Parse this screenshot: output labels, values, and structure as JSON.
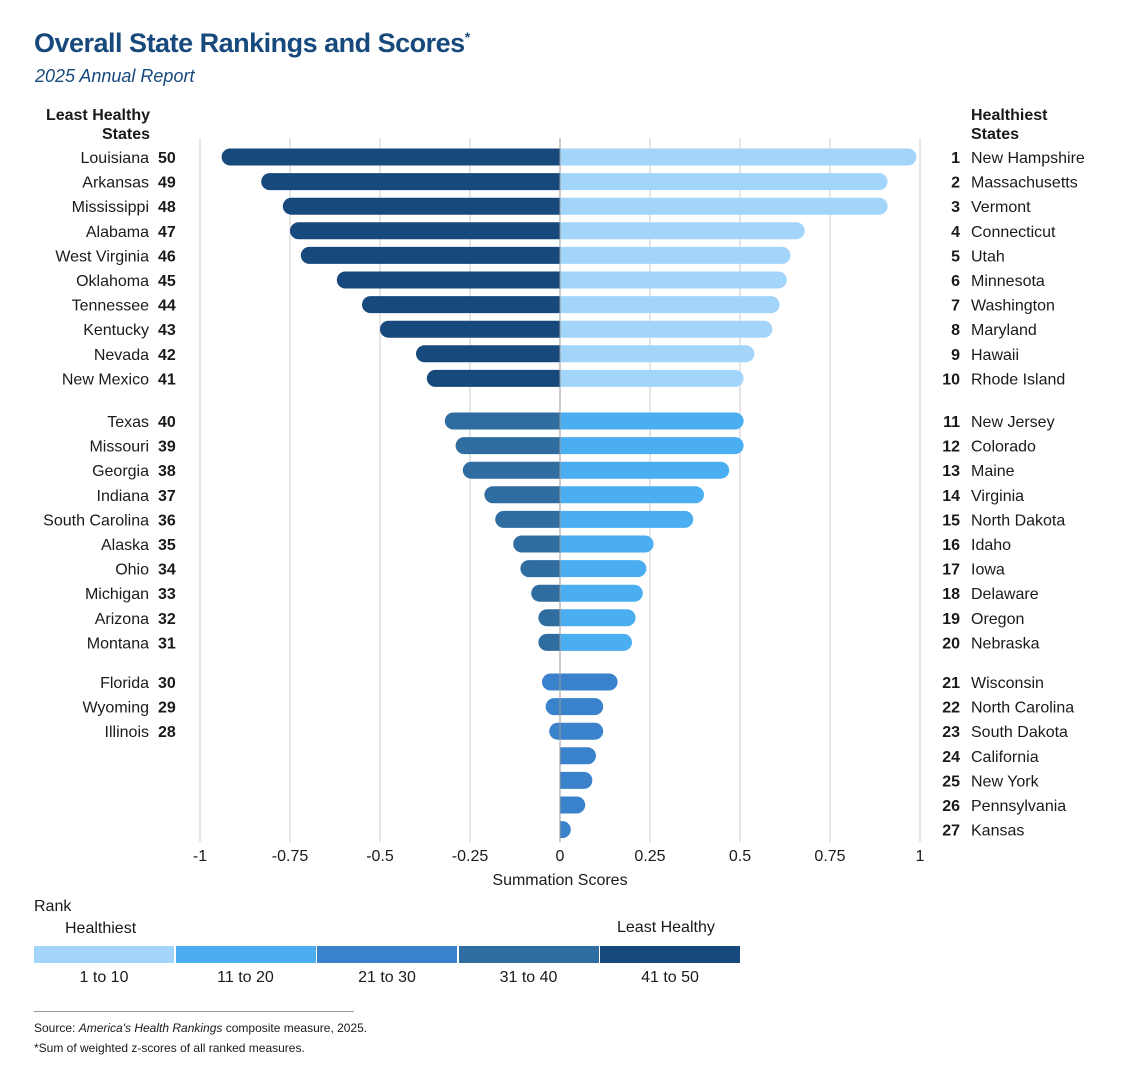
{
  "title": "Overall State Rankings and Scores",
  "title_mark": "*",
  "subtitle": "2025 Annual Report",
  "left_header": "Least Healthy States",
  "right_header": "Healthiest States",
  "legend": {
    "title": "Rank",
    "left_label": "Healthiest",
    "right_label": "Least Healthy",
    "items": [
      {
        "label": "1 to 10",
        "color": "#a3d5fb"
      },
      {
        "label": "11 to 20",
        "color": "#4aaef0"
      },
      {
        "label": "21 to 30",
        "color": "#3a82cb"
      },
      {
        "label": "31 to 40",
        "color": "#2f6ca0"
      },
      {
        "label": "41 to 50",
        "color": "#17497c"
      }
    ]
  },
  "source_prefix": "Source: ",
  "source_italic": "America's Health Rankings",
  "source_suffix": " composite measure, 2025.",
  "note": "*Sum of weighted z-scores of all ranked measures.",
  "chart_data": {
    "type": "bar",
    "orientation": "horizontal-diverging",
    "xlabel": "Summation Scores",
    "xlim": [
      -1,
      1
    ],
    "xticks": [
      -1,
      -0.75,
      -0.5,
      -0.25,
      0,
      0.25,
      0.5,
      0.75,
      1
    ],
    "xtick_labels": [
      "-1",
      "-0.75",
      "-0.5",
      "-0.25",
      "0",
      "0.25",
      "0.5",
      "0.75",
      "1"
    ],
    "grid": true,
    "healthiest": [
      {
        "rank": 1,
        "state": "New Hampshire",
        "score": 0.99
      },
      {
        "rank": 2,
        "state": "Massachusetts",
        "score": 0.91
      },
      {
        "rank": 3,
        "state": "Vermont",
        "score": 0.91
      },
      {
        "rank": 4,
        "state": "Connecticut",
        "score": 0.68
      },
      {
        "rank": 5,
        "state": "Utah",
        "score": 0.64
      },
      {
        "rank": 6,
        "state": "Minnesota",
        "score": 0.63
      },
      {
        "rank": 7,
        "state": "Washington",
        "score": 0.61
      },
      {
        "rank": 8,
        "state": "Maryland",
        "score": 0.59
      },
      {
        "rank": 9,
        "state": "Hawaii",
        "score": 0.54
      },
      {
        "rank": 10,
        "state": "Rhode Island",
        "score": 0.51
      },
      {
        "rank": 11,
        "state": "New Jersey",
        "score": 0.51
      },
      {
        "rank": 12,
        "state": "Colorado",
        "score": 0.51
      },
      {
        "rank": 13,
        "state": "Maine",
        "score": 0.47
      },
      {
        "rank": 14,
        "state": "Virginia",
        "score": 0.4
      },
      {
        "rank": 15,
        "state": "North Dakota",
        "score": 0.37
      },
      {
        "rank": 16,
        "state": "Idaho",
        "score": 0.26
      },
      {
        "rank": 17,
        "state": "Iowa",
        "score": 0.24
      },
      {
        "rank": 18,
        "state": "Delaware",
        "score": 0.23
      },
      {
        "rank": 19,
        "state": "Oregon",
        "score": 0.21
      },
      {
        "rank": 20,
        "state": "Nebraska",
        "score": 0.2
      },
      {
        "rank": 21,
        "state": "Wisconsin",
        "score": 0.16
      },
      {
        "rank": 22,
        "state": "North Carolina",
        "score": 0.12
      },
      {
        "rank": 23,
        "state": "South Dakota",
        "score": 0.12
      },
      {
        "rank": 24,
        "state": "California",
        "score": 0.1
      },
      {
        "rank": 25,
        "state": "New York",
        "score": 0.09
      },
      {
        "rank": 26,
        "state": "Pennsylvania",
        "score": 0.07
      },
      {
        "rank": 27,
        "state": "Kansas",
        "score": 0.03
      }
    ],
    "least_healthy": [
      {
        "rank": 50,
        "state": "Louisiana",
        "score": -0.94
      },
      {
        "rank": 49,
        "state": "Arkansas",
        "score": -0.83
      },
      {
        "rank": 48,
        "state": "Mississippi",
        "score": -0.77
      },
      {
        "rank": 47,
        "state": "Alabama",
        "score": -0.75
      },
      {
        "rank": 46,
        "state": "West Virginia",
        "score": -0.72
      },
      {
        "rank": 45,
        "state": "Oklahoma",
        "score": -0.62
      },
      {
        "rank": 44,
        "state": "Tennessee",
        "score": -0.55
      },
      {
        "rank": 43,
        "state": "Kentucky",
        "score": -0.5
      },
      {
        "rank": 42,
        "state": "Nevada",
        "score": -0.4
      },
      {
        "rank": 41,
        "state": "New Mexico",
        "score": -0.37
      },
      {
        "rank": 40,
        "state": "Texas",
        "score": -0.32
      },
      {
        "rank": 39,
        "state": "Missouri",
        "score": -0.29
      },
      {
        "rank": 38,
        "state": "Georgia",
        "score": -0.27
      },
      {
        "rank": 37,
        "state": "Indiana",
        "score": -0.21
      },
      {
        "rank": 36,
        "state": "South Carolina",
        "score": -0.18
      },
      {
        "rank": 35,
        "state": "Alaska",
        "score": -0.13
      },
      {
        "rank": 34,
        "state": "Ohio",
        "score": -0.11
      },
      {
        "rank": 33,
        "state": "Michigan",
        "score": -0.08
      },
      {
        "rank": 32,
        "state": "Arizona",
        "score": -0.06
      },
      {
        "rank": 31,
        "state": "Montana",
        "score": -0.06
      },
      {
        "rank": 30,
        "state": "Florida",
        "score": -0.05
      },
      {
        "rank": 29,
        "state": "Wyoming",
        "score": -0.04
      },
      {
        "rank": 28,
        "state": "Illinois",
        "score": -0.03
      }
    ]
  }
}
